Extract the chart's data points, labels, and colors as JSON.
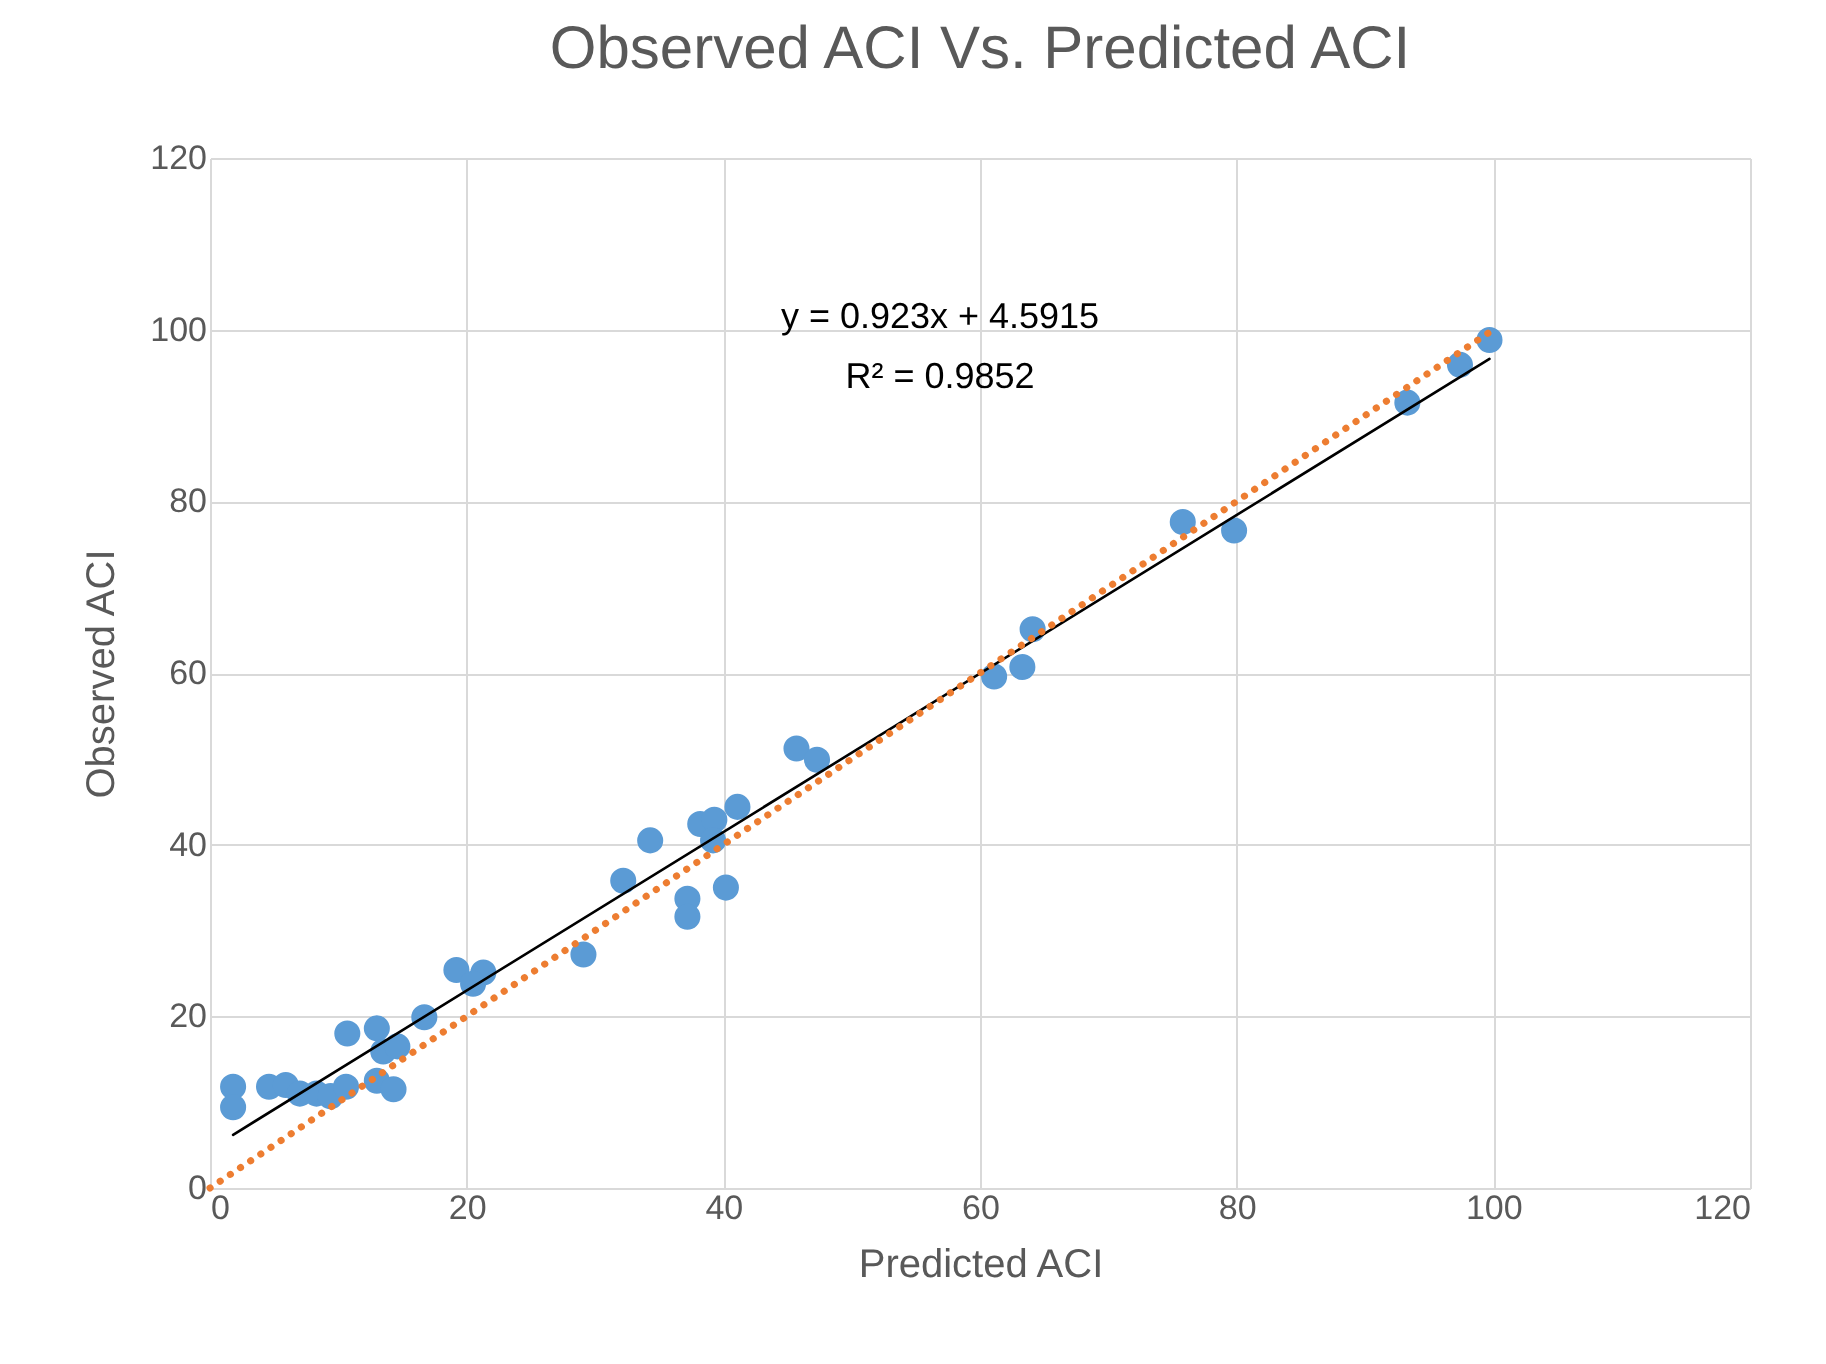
{
  "chart_data": {
    "type": "scatter",
    "title": "Observed ACI Vs. Predicted ACI",
    "xlabel": "Predicted ACI",
    "ylabel": "Observed ACI",
    "x": [
      1.8,
      1.8,
      4.6,
      5.9,
      7.0,
      8.3,
      9.4,
      10.6,
      10.7,
      13.0,
      13.0,
      14.3,
      13.5,
      14.6,
      16.7,
      19.2,
      21.3,
      20.5,
      29.1,
      32.2,
      34.3,
      37.2,
      37.2,
      38.2,
      39.3,
      39.2,
      40.2,
      41.1,
      45.7,
      47.3,
      61.1,
      63.3,
      64.1,
      75.8,
      79.8,
      93.3,
      97.4,
      99.7
    ],
    "series": [
      {
        "color": "#5b9bd5",
        "marker": "circle",
        "values": [
          11.8,
          9.4,
          11.8,
          12.0,
          11.0,
          11.0,
          10.7,
          11.8,
          18.0,
          18.6,
          12.5,
          11.5,
          15.9,
          16.5,
          19.9,
          25.4,
          25.1,
          23.8,
          27.2,
          35.8,
          40.5,
          33.7,
          31.6,
          42.4,
          42.9,
          40.5,
          35.0,
          44.4,
          51.2,
          49.9,
          59.6,
          60.7,
          65.1,
          77.6,
          76.6,
          91.5,
          95.9,
          98.8
        ]
      },
      {
        "type": "line",
        "color": "#000000",
        "line_style": "solid",
        "x": [
          1.8,
          99.7
        ],
        "values": [
          6.2,
          96.6
        ]
      },
      {
        "type": "line",
        "color": "#ed7d31",
        "line_style": "dotted",
        "x": [
          0,
          100
        ],
        "values": [
          0,
          100
        ]
      }
    ],
    "xlim": [
      0,
      120
    ],
    "ylim": [
      0,
      120
    ],
    "xticks": [
      0,
      20,
      40,
      60,
      80,
      100,
      120
    ],
    "yticks": [
      0,
      20,
      40,
      60,
      80,
      100,
      120
    ],
    "grid": true,
    "annotations": [
      "y = 0.923x + 4.5915",
      "R² = 0.9852"
    ]
  }
}
